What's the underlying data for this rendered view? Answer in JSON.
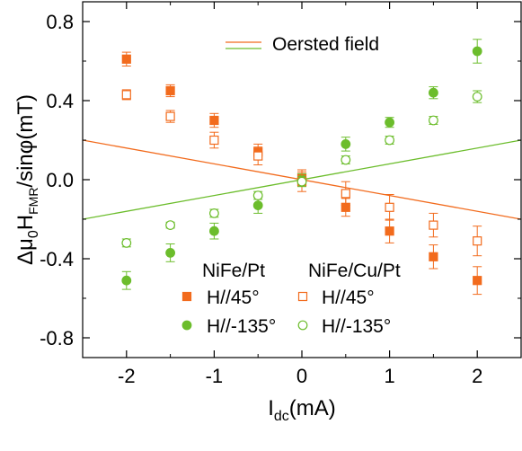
{
  "chart_data": {
    "type": "scatter",
    "xlabel": "I",
    "xlabel_sub": "dc",
    "xlabel_tail": "(mA)",
    "ylabel": {
      "prefix": "Δμ",
      "sub1": "0",
      "mid": "H",
      "sub2": "FMR",
      "tail": "/sinφ(mT)"
    },
    "xlim": [
      -2.5,
      2.5
    ],
    "ylim": [
      -0.9,
      0.9
    ],
    "xticks": [
      -2,
      -1,
      0,
      1,
      2
    ],
    "xtick_labels": [
      "-2",
      "-1",
      "0",
      "1",
      "2"
    ],
    "yticks": [
      -0.8,
      -0.4,
      0.0,
      0.4,
      0.8
    ],
    "ytick_labels": [
      "-0.8",
      "-0.4",
      "0.0",
      "0.4",
      "0.8"
    ],
    "grid": false,
    "colors": {
      "orange": "#f26b1d",
      "green": "#6cbd2c"
    },
    "lines": [
      {
        "name": "Oersted field",
        "color": "#f26b1d",
        "x": [
          -2.5,
          2.5
        ],
        "y": [
          0.2,
          -0.2
        ]
      },
      {
        "color": "#6cbd2c",
        "x": [
          -2.5,
          2.5
        ],
        "y": [
          -0.2,
          0.2
        ]
      }
    ],
    "group_titles": [
      "NiFe/Pt",
      "NiFe/Cu/Pt"
    ],
    "series": [
      {
        "name": "H//45°",
        "group": "NiFe/Pt",
        "marker": "square",
        "filled": true,
        "color": "#f26b1d",
        "x": [
          -2,
          -1.5,
          -1,
          -0.5,
          0,
          0.5,
          1,
          1.5,
          2
        ],
        "y": [
          0.61,
          0.45,
          0.3,
          0.14,
          0.01,
          -0.14,
          -0.26,
          -0.39,
          -0.51
        ],
        "err": [
          0.035,
          0.03,
          0.035,
          0.04,
          0.04,
          0.045,
          0.06,
          0.06,
          0.07
        ]
      },
      {
        "name": "H//-135°",
        "group": "NiFe/Pt",
        "marker": "circle",
        "filled": true,
        "color": "#6cbd2c",
        "x": [
          -2,
          -1.5,
          -1,
          -0.5,
          0,
          0.5,
          1,
          1.5,
          2
        ],
        "y": [
          -0.51,
          -0.37,
          -0.26,
          -0.13,
          0.0,
          0.18,
          0.29,
          0.44,
          0.65
        ],
        "err": [
          0.045,
          0.045,
          0.04,
          0.04,
          0.03,
          0.035,
          0.025,
          0.03,
          0.06
        ]
      },
      {
        "name": "H//45°",
        "group": "NiFe/Cu/Pt",
        "marker": "square",
        "filled": false,
        "color": "#f26b1d",
        "x": [
          -2,
          -1.5,
          -1,
          -0.5,
          0,
          0.5,
          1,
          1.5,
          2
        ],
        "y": [
          0.43,
          0.32,
          0.2,
          0.12,
          -0.01,
          -0.07,
          -0.14,
          -0.23,
          -0.31
        ],
        "err": [
          0.025,
          0.03,
          0.04,
          0.045,
          0.05,
          0.06,
          0.065,
          0.06,
          0.075
        ]
      },
      {
        "name": "H//-135°",
        "group": "NiFe/Cu/Pt",
        "marker": "circle",
        "filled": false,
        "color": "#6cbd2c",
        "x": [
          -2,
          -1.5,
          -1,
          -0.5,
          0,
          0.5,
          1,
          1.5,
          2
        ],
        "y": [
          -0.32,
          -0.23,
          -0.17,
          -0.08,
          -0.01,
          0.1,
          0.2,
          0.3,
          0.42
        ],
        "err": [
          0.02,
          0.015,
          0.02,
          0.02,
          0.025,
          0.02,
          0.02,
          0.02,
          0.03
        ]
      }
    ]
  }
}
